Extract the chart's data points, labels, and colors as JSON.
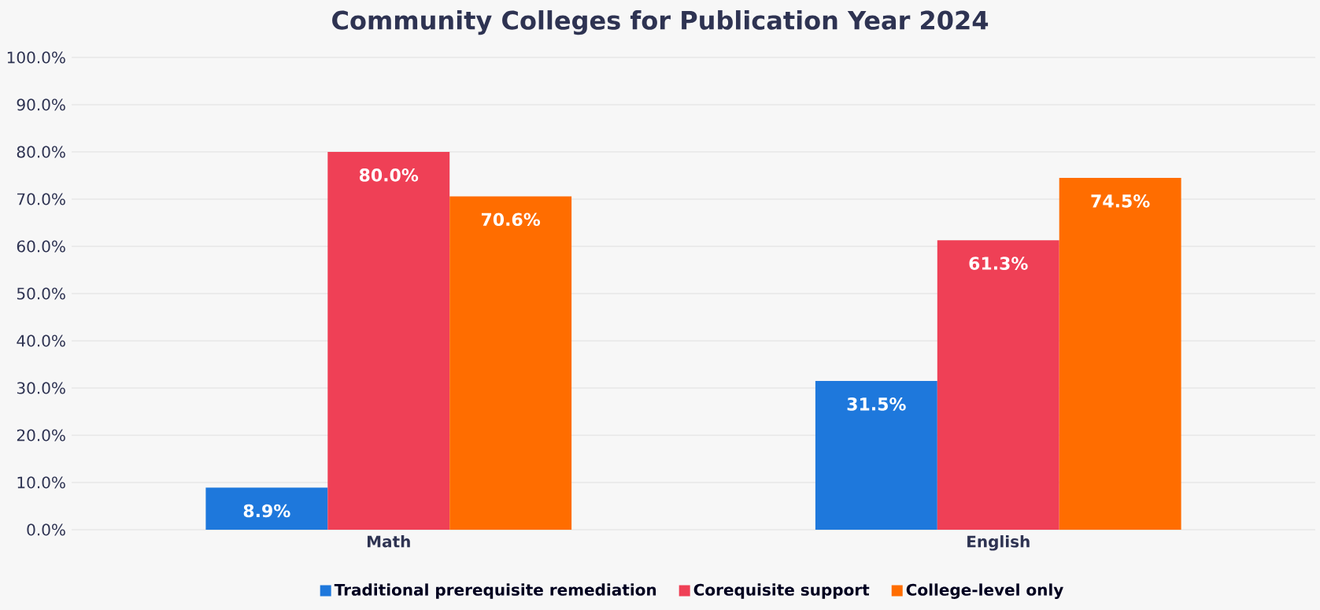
{
  "chart_data": {
    "type": "bar",
    "title": "Community Colleges for Publication Year 2024",
    "categories": [
      "Math",
      "English"
    ],
    "series": [
      {
        "name": "Traditional prerequisite remediation",
        "color": "#1e78dc",
        "values": [
          8.9,
          31.5
        ],
        "value_labels": [
          "8.9%",
          "31.5%"
        ]
      },
      {
        "name": "Corequisite support",
        "color": "#ef4056",
        "values": [
          80.0,
          61.3
        ],
        "value_labels": [
          "80.0%",
          "61.3%"
        ]
      },
      {
        "name": "College-level only",
        "color": "#ff6d00",
        "values": [
          70.6,
          74.5
        ],
        "value_labels": [
          "70.6%",
          "74.5%"
        ]
      }
    ],
    "ylim": [
      0,
      100
    ],
    "yticks": [
      {
        "value": 0,
        "label": "0.0%"
      },
      {
        "value": 10,
        "label": "10.0%"
      },
      {
        "value": 20,
        "label": "20.0%"
      },
      {
        "value": 30,
        "label": "30.0%"
      },
      {
        "value": 40,
        "label": "40.0%"
      },
      {
        "value": 50,
        "label": "50.0%"
      },
      {
        "value": 60,
        "label": "60.0%"
      },
      {
        "value": 70,
        "label": "70.0%"
      },
      {
        "value": 80,
        "label": "80.0%"
      },
      {
        "value": 90,
        "label": "90.0%"
      },
      {
        "value": 100,
        "label": "100.0%"
      }
    ],
    "grid": "y",
    "legend": "bottom"
  }
}
